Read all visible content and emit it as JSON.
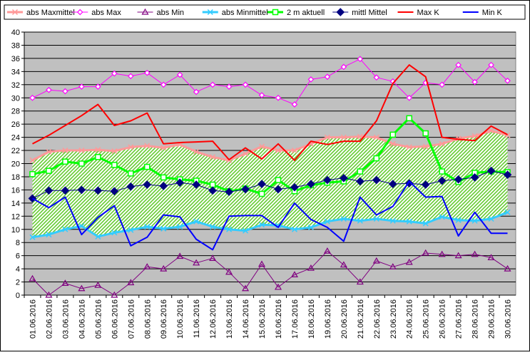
{
  "chart_data": {
    "type": "line",
    "title": "",
    "xlabel": "",
    "ylabel": "",
    "ylim": [
      0,
      40
    ],
    "yticks": [
      0,
      2,
      4,
      6,
      8,
      10,
      12,
      14,
      16,
      18,
      20,
      22,
      24,
      26,
      28,
      30,
      32,
      34,
      36,
      38,
      40
    ],
    "grid": true,
    "legend_position": "top",
    "plot_background": "#c0c0c0",
    "categories": [
      "01.06.2016",
      "02.06.2016",
      "03.06.2016",
      "04.06.2016",
      "05.06.2016",
      "06.06.2016",
      "07.06.2016",
      "08.06.2016",
      "09.06.2016",
      "10.06.2016",
      "11.06.2016",
      "12.06.2016",
      "13.06.2016",
      "14.06.2016",
      "15.06.2016",
      "16.06.2016",
      "17.06.2016",
      "18.06.2016",
      "19.06.2016",
      "20.06.2016",
      "21.06.2016",
      "22.06.2016",
      "23.06.2016",
      "24.06.2016",
      "25.06.2016",
      "26.06.2016",
      "27.06.2016",
      "28.06.2016",
      "29.06.2016",
      "30.06.2016"
    ],
    "band": {
      "upper_series": "abs Maxmittel",
      "lower_series": "abs Minmittel",
      "fill": "#99dd66",
      "hatch": true
    },
    "series": [
      {
        "name": "abs Maxmittel",
        "color": "#ff9999",
        "marker": "x",
        "width": 3,
        "values": [
          20.5,
          21.8,
          22.0,
          22.0,
          22.1,
          21.9,
          22.5,
          22.7,
          22.4,
          22.9,
          21.8,
          21.0,
          20.5,
          21.5,
          22.6,
          22.0,
          22.0,
          23.0,
          24.0,
          24.0,
          24.1,
          24.0,
          23.0,
          22.5,
          22.6,
          23.0,
          23.8,
          24.2,
          25.0,
          24.3
        ]
      },
      {
        "name": "abs Max",
        "color": "#ff00ff",
        "marker": "diamond-open",
        "width": 1,
        "values": [
          30.0,
          31.2,
          31.0,
          31.7,
          31.7,
          33.7,
          33.3,
          33.8,
          32.0,
          33.5,
          30.9,
          32.0,
          31.7,
          32.0,
          30.4,
          30.0,
          29.0,
          32.8,
          33.2,
          34.7,
          35.9,
          33.1,
          32.5,
          30.0,
          32.3,
          32.0,
          35.0,
          32.4,
          35.0,
          32.6
        ]
      },
      {
        "name": "abs Min",
        "color": "#800080",
        "marker": "triangle-open",
        "width": 1,
        "values": [
          2.5,
          0.0,
          1.8,
          1.0,
          1.5,
          0.0,
          1.9,
          4.3,
          4.0,
          5.9,
          4.9,
          5.6,
          3.5,
          1.0,
          4.7,
          1.2,
          3.1,
          4.1,
          6.7,
          4.6,
          2.0,
          5.2,
          4.3,
          5.0,
          6.4,
          6.2,
          6.0,
          6.2,
          5.7,
          4.0
        ]
      },
      {
        "name": "abs Minmittel",
        "color": "#33ccff",
        "marker": "x",
        "width": 3,
        "values": [
          8.8,
          9.2,
          10.0,
          10.5,
          8.9,
          9.5,
          9.9,
          10.4,
          10.1,
          10.4,
          11.2,
          10.4,
          10.0,
          9.8,
          10.7,
          10.6,
          10.0,
          10.3,
          11.2,
          11.6,
          11.3,
          11.6,
          11.3,
          11.2,
          10.9,
          11.9,
          11.4,
          11.3,
          11.6,
          12.6
        ]
      },
      {
        "name": "2 m aktuell",
        "color": "#00ff00",
        "marker": "square-open",
        "width": 3,
        "values": [
          18.4,
          18.9,
          20.3,
          20.0,
          21.0,
          19.8,
          18.5,
          19.5,
          17.9,
          17.6,
          17.4,
          16.8,
          15.8,
          16.2,
          15.4,
          17.5,
          15.8,
          16.7,
          17.1,
          17.3,
          18.8,
          20.8,
          24.4,
          26.9,
          24.6,
          18.8,
          17.2,
          18.6,
          18.8,
          18.7
        ]
      },
      {
        "name": "mittl Mittel",
        "color": "#000080",
        "marker": "diamond-filled",
        "width": 1,
        "values": [
          14.7,
          15.9,
          15.9,
          16.0,
          15.9,
          15.8,
          16.5,
          16.8,
          16.6,
          17.1,
          16.8,
          15.9,
          15.7,
          16.1,
          16.9,
          16.1,
          16.4,
          16.9,
          17.5,
          17.8,
          17.3,
          17.5,
          16.9,
          17.0,
          16.8,
          17.4,
          17.6,
          17.9,
          18.9,
          18.3
        ]
      },
      {
        "name": "Max K",
        "color": "#ff0000",
        "marker": "none",
        "width": 2,
        "values": [
          23.0,
          24.3,
          25.8,
          27.3,
          29.0,
          25.8,
          26.5,
          27.7,
          23.0,
          23.2,
          23.3,
          23.4,
          20.6,
          22.4,
          20.7,
          23.0,
          20.5,
          23.4,
          22.9,
          23.4,
          23.4,
          26.5,
          32.2,
          35.0,
          33.2,
          24.0,
          23.7,
          23.5,
          25.7,
          24.4
        ]
      },
      {
        "name": "Min K",
        "color": "#0000ff",
        "marker": "none",
        "width": 2,
        "values": [
          14.7,
          13.3,
          14.9,
          9.2,
          11.8,
          13.6,
          7.5,
          8.8,
          12.2,
          11.9,
          8.5,
          6.9,
          12.0,
          12.1,
          12.1,
          10.3,
          14.0,
          11.5,
          10.3,
          8.2,
          14.9,
          12.2,
          13.5,
          17.3,
          14.9,
          15.0,
          9.0,
          12.6,
          9.4,
          9.4
        ]
      }
    ]
  }
}
